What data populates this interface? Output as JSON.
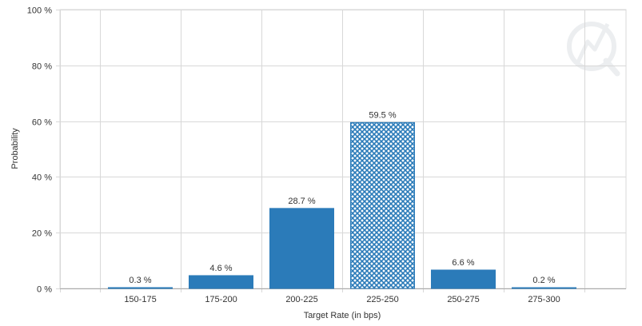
{
  "chart_data": {
    "type": "bar",
    "categories": [
      "150-175",
      "175-200",
      "200-225",
      "225-250",
      "250-275",
      "275-300"
    ],
    "values": [
      0.3,
      4.6,
      28.7,
      59.5,
      6.6,
      0.2
    ],
    "data_labels": [
      "0.3 %",
      "4.6 %",
      "28.7 %",
      "59.5 %",
      "6.6 %",
      "0.2 %"
    ],
    "highlight_index": 3,
    "xlabel": "Target Rate (in bps)",
    "ylabel": "Probability",
    "ylim": [
      0,
      100
    ],
    "yticks": [
      0,
      20,
      40,
      60,
      80,
      100
    ],
    "ytick_labels": [
      "0 %",
      "20 %",
      "40 %",
      "60 %",
      "80 %",
      "100 %"
    ],
    "grid": true,
    "colors": {
      "bar": "#2b7bb9",
      "highlight_pattern": "crosshatch",
      "grid": "#d8d8d8",
      "axis": "#aaaaaa"
    }
  },
  "watermark_icon": "quikstrike-logo-icon"
}
